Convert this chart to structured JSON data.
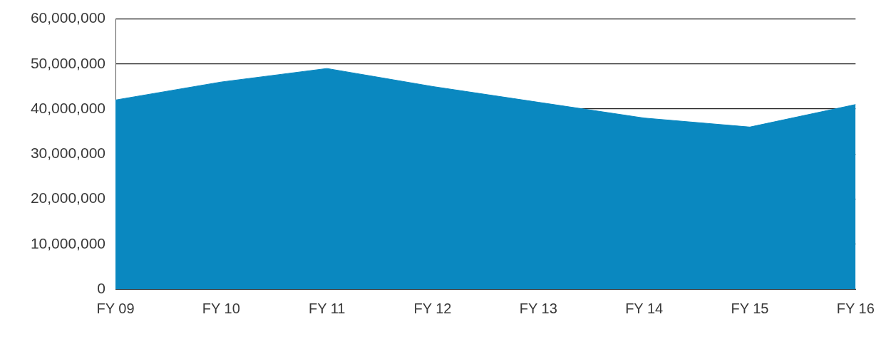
{
  "chart_data": {
    "type": "area",
    "categories": [
      "FY 09",
      "FY 10",
      "FY 11",
      "FY 12",
      "FY 13",
      "FY 14",
      "FY 15",
      "FY 16"
    ],
    "values": [
      42000000,
      46000000,
      49000000,
      45000000,
      41500000,
      38000000,
      36000000,
      41000000
    ],
    "color": "#0a88c0",
    "ylim": [
      0,
      60000000
    ],
    "yticks": [
      0,
      {
        "value": 10000000,
        "label": "10,000,000"
      },
      {
        "value": 20000000,
        "label": "20,000,000"
      },
      {
        "value": 30000000,
        "label": "30,000,000"
      },
      {
        "value": 40000000,
        "label": "40,000,000"
      },
      {
        "value": 50000000,
        "label": "50,000,000"
      },
      {
        "value": 60000000,
        "label": "60,000,000"
      }
    ],
    "grid": "y"
  }
}
